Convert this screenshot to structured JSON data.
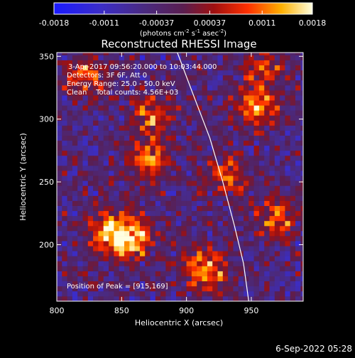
{
  "chart_data": {
    "type": "heatmap",
    "title": "Reconstructed RHESSI Image",
    "xlabel": "Heliocentric X (arcsec)",
    "ylabel": "Heliocentric Y (arcsec)",
    "xlim": [
      800,
      990
    ],
    "ylim": [
      155,
      353
    ],
    "xticks": [
      "800",
      "850",
      "900",
      "950"
    ],
    "xtick_values": [
      800,
      850,
      900,
      950
    ],
    "yticks": [
      "200",
      "250",
      "300",
      "350"
    ],
    "ytick_values": [
      200,
      250,
      300,
      350
    ],
    "colorbar": {
      "ticks": [
        "-0.0018",
        "-0.0011",
        "-0.00037",
        "0.00037",
        "0.0011",
        "0.0018"
      ],
      "range": [
        -0.0018,
        0.0018
      ],
      "unit_label": "(photons cm",
      "unit_sup1": "-2",
      "unit_mid": " s",
      "unit_sup2": "-1",
      "unit_mid2": " asec",
      "unit_sup3": "-2",
      "unit_end": ")"
    },
    "annotations": [
      "3-Apr-2017 09:56:20.000 to 10:03:44.000",
      "Detectors: 3F 6F, Att 0",
      "Energy Range: 25.0 - 50.0 keV",
      "Clean    Total counts: 4.56E+03"
    ],
    "peak_label": "Position of Peak = [915,169]",
    "peak": [
      915,
      169
    ],
    "hot_spots": [
      {
        "x": 868,
        "y": 265,
        "value": 0.0016
      },
      {
        "x": 872,
        "y": 300,
        "value": 0.0014
      },
      {
        "x": 838,
        "y": 208,
        "value": 0.0017
      },
      {
        "x": 856,
        "y": 203,
        "value": 0.0018
      },
      {
        "x": 820,
        "y": 333,
        "value": 0.0013
      },
      {
        "x": 951,
        "y": 307,
        "value": 0.0018
      },
      {
        "x": 913,
        "y": 178,
        "value": 0.0018
      },
      {
        "x": 930,
        "y": 252,
        "value": 0.0012
      },
      {
        "x": 968,
        "y": 220,
        "value": 0.0013
      },
      {
        "x": 958,
        "y": 340,
        "value": 0.0011
      }
    ],
    "limb_curve": [
      [
        893,
        353
      ],
      [
        905,
        320
      ],
      [
        918,
        285
      ],
      [
        928,
        250
      ],
      [
        937,
        215
      ],
      [
        944,
        185
      ],
      [
        948,
        155
      ]
    ]
  },
  "footer": {
    "timestamp": "6-Sep-2022 05:28"
  }
}
